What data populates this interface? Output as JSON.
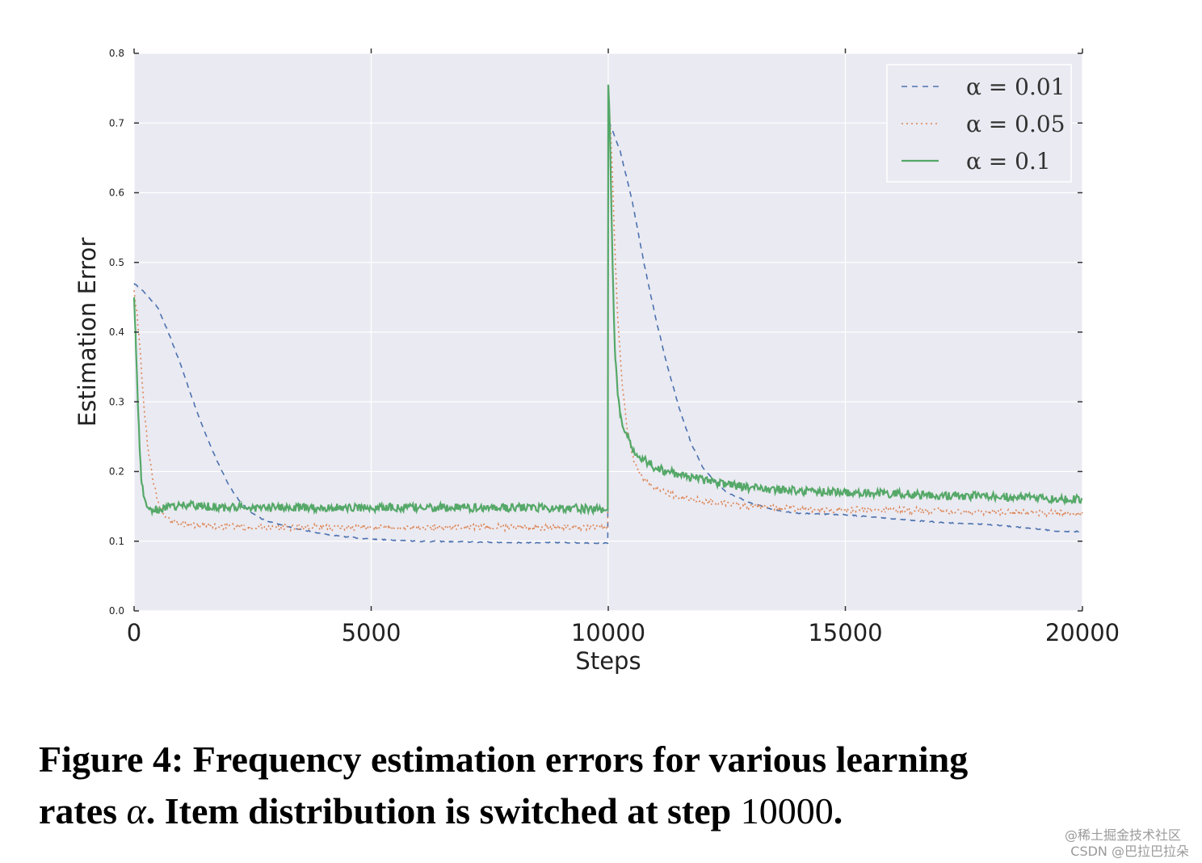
{
  "chart_data": {
    "type": "line",
    "xlabel": "Steps",
    "ylabel": "Estimation Error",
    "xlim": [
      0,
      20000
    ],
    "ylim": [
      0,
      0.8
    ],
    "xticks": [
      0,
      5000,
      10000,
      15000,
      20000
    ],
    "xtick_labels": [
      "0",
      "5000",
      "10000",
      "15000",
      "20000"
    ],
    "yticks": [
      0.0,
      0.1,
      0.2,
      0.3,
      0.4,
      0.5,
      0.6,
      0.7,
      0.8
    ],
    "ytick_labels": [
      "0.0",
      "0.1",
      "0.2",
      "0.3",
      "0.4",
      "0.5",
      "0.6",
      "0.7",
      "0.8"
    ],
    "grid": true,
    "legend_position": "top-right",
    "series": [
      {
        "name": "α = 0.01",
        "style": "dashed",
        "color": "#4c72b0",
        "x": [
          0,
          250,
          500,
          750,
          1000,
          1250,
          1500,
          1750,
          2000,
          2250,
          2500,
          2750,
          3000,
          3500,
          4000,
          4500,
          5000,
          6000,
          7000,
          8000,
          9000,
          9990,
          10000,
          10250,
          10500,
          10750,
          11000,
          11250,
          11500,
          11750,
          12000,
          12250,
          12500,
          13000,
          13500,
          14000,
          15000,
          16000,
          17000,
          18000,
          19000,
          19500,
          20000
        ],
        "y": [
          0.47,
          0.455,
          0.435,
          0.395,
          0.35,
          0.3,
          0.255,
          0.215,
          0.18,
          0.155,
          0.14,
          0.13,
          0.125,
          0.117,
          0.11,
          0.106,
          0.103,
          0.1,
          0.099,
          0.098,
          0.098,
          0.097,
          0.705,
          0.66,
          0.59,
          0.5,
          0.42,
          0.35,
          0.29,
          0.24,
          0.205,
          0.185,
          0.17,
          0.155,
          0.145,
          0.14,
          0.138,
          0.132,
          0.127,
          0.124,
          0.118,
          0.114,
          0.114
        ]
      },
      {
        "name": "α = 0.05",
        "style": "dotted",
        "color": "#dd8452",
        "x": [
          0,
          60,
          120,
          180,
          240,
          300,
          400,
          500,
          600,
          700,
          800,
          1000,
          1500,
          2000,
          3000,
          4000,
          5000,
          6000,
          7000,
          8000,
          9000,
          9990,
          10000,
          10050,
          10100,
          10150,
          10200,
          10300,
          10400,
          10500,
          10600,
          10700,
          10800,
          11000,
          11200,
          11500,
          12000,
          12500,
          13000,
          14000,
          15000,
          16000,
          17000,
          18000,
          19000,
          20000
        ],
        "y": [
          0.46,
          0.43,
          0.38,
          0.32,
          0.27,
          0.23,
          0.185,
          0.16,
          0.14,
          0.133,
          0.128,
          0.125,
          0.122,
          0.121,
          0.12,
          0.12,
          0.12,
          0.12,
          0.12,
          0.12,
          0.12,
          0.12,
          0.74,
          0.69,
          0.6,
          0.5,
          0.42,
          0.32,
          0.26,
          0.225,
          0.205,
          0.195,
          0.185,
          0.177,
          0.17,
          0.163,
          0.158,
          0.153,
          0.15,
          0.146,
          0.145,
          0.145,
          0.143,
          0.142,
          0.141,
          0.14
        ]
      },
      {
        "name": "α = 0.1",
        "style": "solid",
        "color": "#55a868",
        "x": [
          0,
          30,
          60,
          90,
          120,
          150,
          200,
          250,
          300,
          400,
          500,
          700,
          1000,
          1500,
          2000,
          3000,
          4000,
          5000,
          6000,
          7000,
          8000,
          9000,
          9990,
          10000,
          10030,
          10060,
          10090,
          10120,
          10150,
          10200,
          10250,
          10300,
          10400,
          10500,
          10600,
          10800,
          11000,
          11500,
          12000,
          12500,
          13000,
          14000,
          15000,
          16000,
          17000,
          18000,
          19000,
          20000
        ],
        "y": [
          0.45,
          0.4,
          0.34,
          0.28,
          0.23,
          0.19,
          0.165,
          0.155,
          0.148,
          0.145,
          0.145,
          0.148,
          0.152,
          0.15,
          0.148,
          0.148,
          0.148,
          0.148,
          0.148,
          0.148,
          0.148,
          0.148,
          0.145,
          0.755,
          0.7,
          0.6,
          0.5,
          0.42,
          0.36,
          0.31,
          0.28,
          0.265,
          0.25,
          0.235,
          0.225,
          0.215,
          0.205,
          0.195,
          0.188,
          0.182,
          0.177,
          0.172,
          0.17,
          0.168,
          0.166,
          0.164,
          0.162,
          0.16
        ]
      }
    ]
  },
  "caption": {
    "part1": "Figure 4: Frequency estimation errors for various learning",
    "part2": "rates ",
    "alpha": "α",
    "part3": ". Item distribution is switched at step ",
    "step": "10000",
    "part4": "."
  },
  "watermark": {
    "line1": "@稀土掘金技术社区",
    "line2": "CSDN @巴拉巴拉朵"
  }
}
